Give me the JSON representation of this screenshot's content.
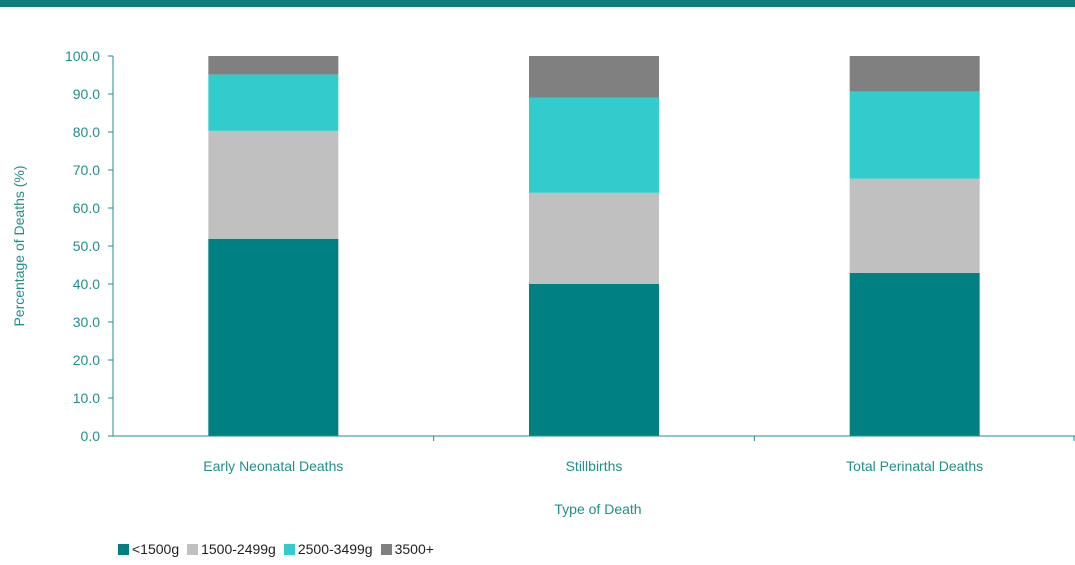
{
  "chart_data": {
    "type": "bar",
    "stacked": true,
    "categories": [
      "Early Neonatal Deaths",
      "Stillbirths",
      "Total Perinatal Deaths"
    ],
    "series": [
      {
        "name": "<1500g",
        "values": [
          51.9,
          40.0,
          42.9
        ],
        "color": "#008080"
      },
      {
        "name": "1500-2499g",
        "values": [
          28.4,
          24.0,
          24.8
        ],
        "color": "#c0c0c0"
      },
      {
        "name": "2500-3499g",
        "values": [
          14.8,
          25.0,
          22.9
        ],
        "color": "#33cccc"
      },
      {
        "name": "3500+",
        "values": [
          4.9,
          11.0,
          9.4
        ],
        "color": "#808080"
      }
    ],
    "xlabel": "Type of Death",
    "ylabel": "Percentage of Deaths (%)",
    "ylim": [
      0,
      100
    ],
    "yticks": [
      "0.0",
      "10.0",
      "20.0",
      "30.0",
      "40.0",
      "50.0",
      "60.0",
      "70.0",
      "80.0",
      "90.0",
      "100.0"
    ],
    "grid": false,
    "legend_position": "bottom-left"
  },
  "colors": {
    "top_rule": "#0f7f7b",
    "axis": "#1f8f8c",
    "text": "#1f8f8c"
  }
}
